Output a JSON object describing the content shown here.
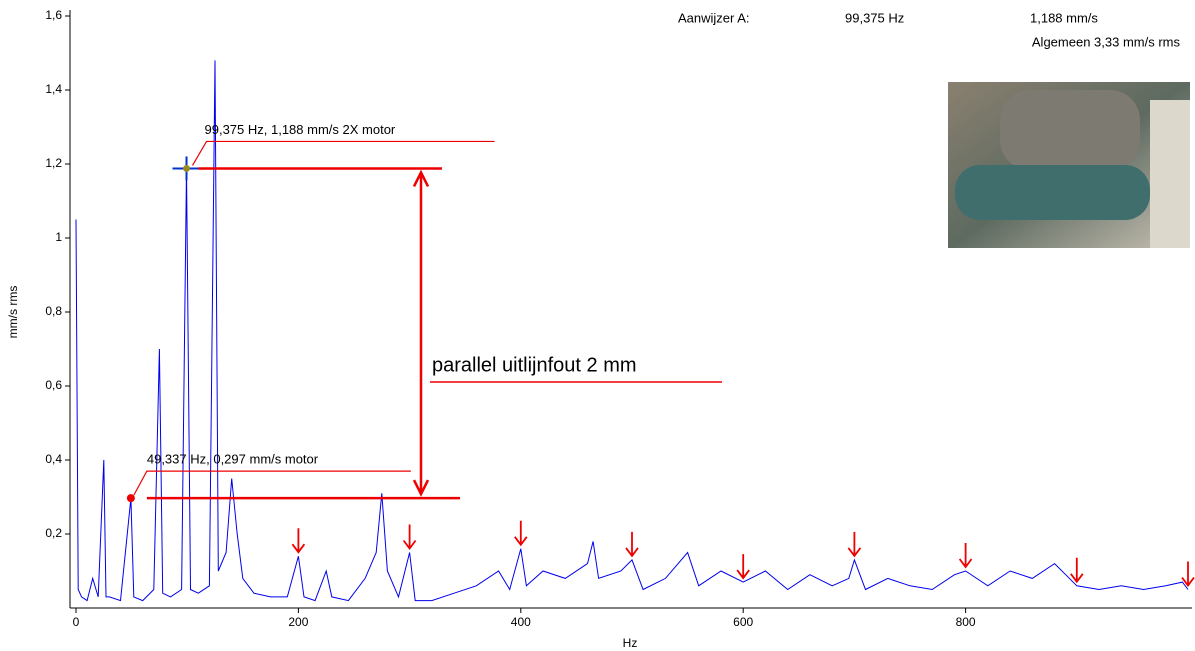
{
  "chart_data": {
    "type": "line",
    "x_label": "Hz",
    "y_label": "mm/s rms",
    "xlim": [
      0,
      1000
    ],
    "ylim": [
      0,
      1.6
    ],
    "xticks": [
      0,
      200,
      400,
      600,
      800
    ],
    "yticks": [
      {
        "value": 0.2,
        "label": "0,2"
      },
      {
        "value": 0.4,
        "label": "0,4"
      },
      {
        "value": 0.6,
        "label": "0,6"
      },
      {
        "value": 0.8,
        "label": "0,8"
      },
      1,
      {
        "value": 1.2,
        "label": "1,2"
      },
      {
        "value": 1.4,
        "label": "1,4"
      },
      {
        "value": 1.6,
        "label": "1,6"
      }
    ],
    "color": "#0000ee",
    "x": [
      0,
      2,
      5,
      10,
      15,
      20,
      25,
      27,
      30,
      40,
      49.337,
      52,
      60,
      70,
      75,
      78,
      85,
      95,
      99.375,
      103,
      110,
      120,
      125,
      128,
      135,
      140,
      145,
      150,
      160,
      175,
      190,
      200,
      205,
      215,
      225,
      230,
      245,
      260,
      270,
      275,
      280,
      290,
      300,
      305,
      320,
      340,
      360,
      380,
      390,
      400,
      405,
      420,
      440,
      460,
      465,
      470,
      490,
      500,
      510,
      530,
      550,
      560,
      580,
      600,
      620,
      640,
      660,
      680,
      695,
      700,
      710,
      730,
      750,
      770,
      790,
      800,
      820,
      840,
      860,
      880,
      890,
      900,
      920,
      940,
      960,
      980,
      995,
      1000
    ],
    "values": [
      1.05,
      0.05,
      0.03,
      0.02,
      0.08,
      0.03,
      0.4,
      0.03,
      0.03,
      0.02,
      0.297,
      0.03,
      0.02,
      0.05,
      0.7,
      0.04,
      0.03,
      0.05,
      1.188,
      0.05,
      0.04,
      0.06,
      1.48,
      0.1,
      0.15,
      0.35,
      0.2,
      0.08,
      0.04,
      0.03,
      0.03,
      0.14,
      0.03,
      0.02,
      0.1,
      0.03,
      0.02,
      0.08,
      0.15,
      0.31,
      0.1,
      0.03,
      0.15,
      0.02,
      0.02,
      0.04,
      0.06,
      0.1,
      0.05,
      0.16,
      0.06,
      0.1,
      0.08,
      0.12,
      0.18,
      0.08,
      0.1,
      0.13,
      0.05,
      0.08,
      0.15,
      0.06,
      0.1,
      0.07,
      0.1,
      0.05,
      0.09,
      0.06,
      0.08,
      0.13,
      0.05,
      0.08,
      0.06,
      0.05,
      0.09,
      0.1,
      0.06,
      0.1,
      0.08,
      0.12,
      0.09,
      0.06,
      0.05,
      0.06,
      0.05,
      0.06,
      0.07,
      0.05
    ],
    "harmonic_markers": [
      200,
      300,
      400,
      500,
      600,
      700,
      800,
      900,
      1000
    ],
    "cursor": {
      "label": "Aanwijzer A:",
      "frequency": "99,375 Hz",
      "amplitude": "1,188 mm/s",
      "overall": "Algemeen 3,33 mm/s rms"
    },
    "annotations": [
      {
        "text": "99,375 Hz, 1,188 mm/s 2X motor",
        "x": 99.375,
        "y": 1.188
      },
      {
        "text": "49,337 Hz, 0,297 mm/s motor",
        "x": 49.337,
        "y": 0.297
      }
    ],
    "difference_label": "parallel uitlijnfout 2 mm"
  }
}
